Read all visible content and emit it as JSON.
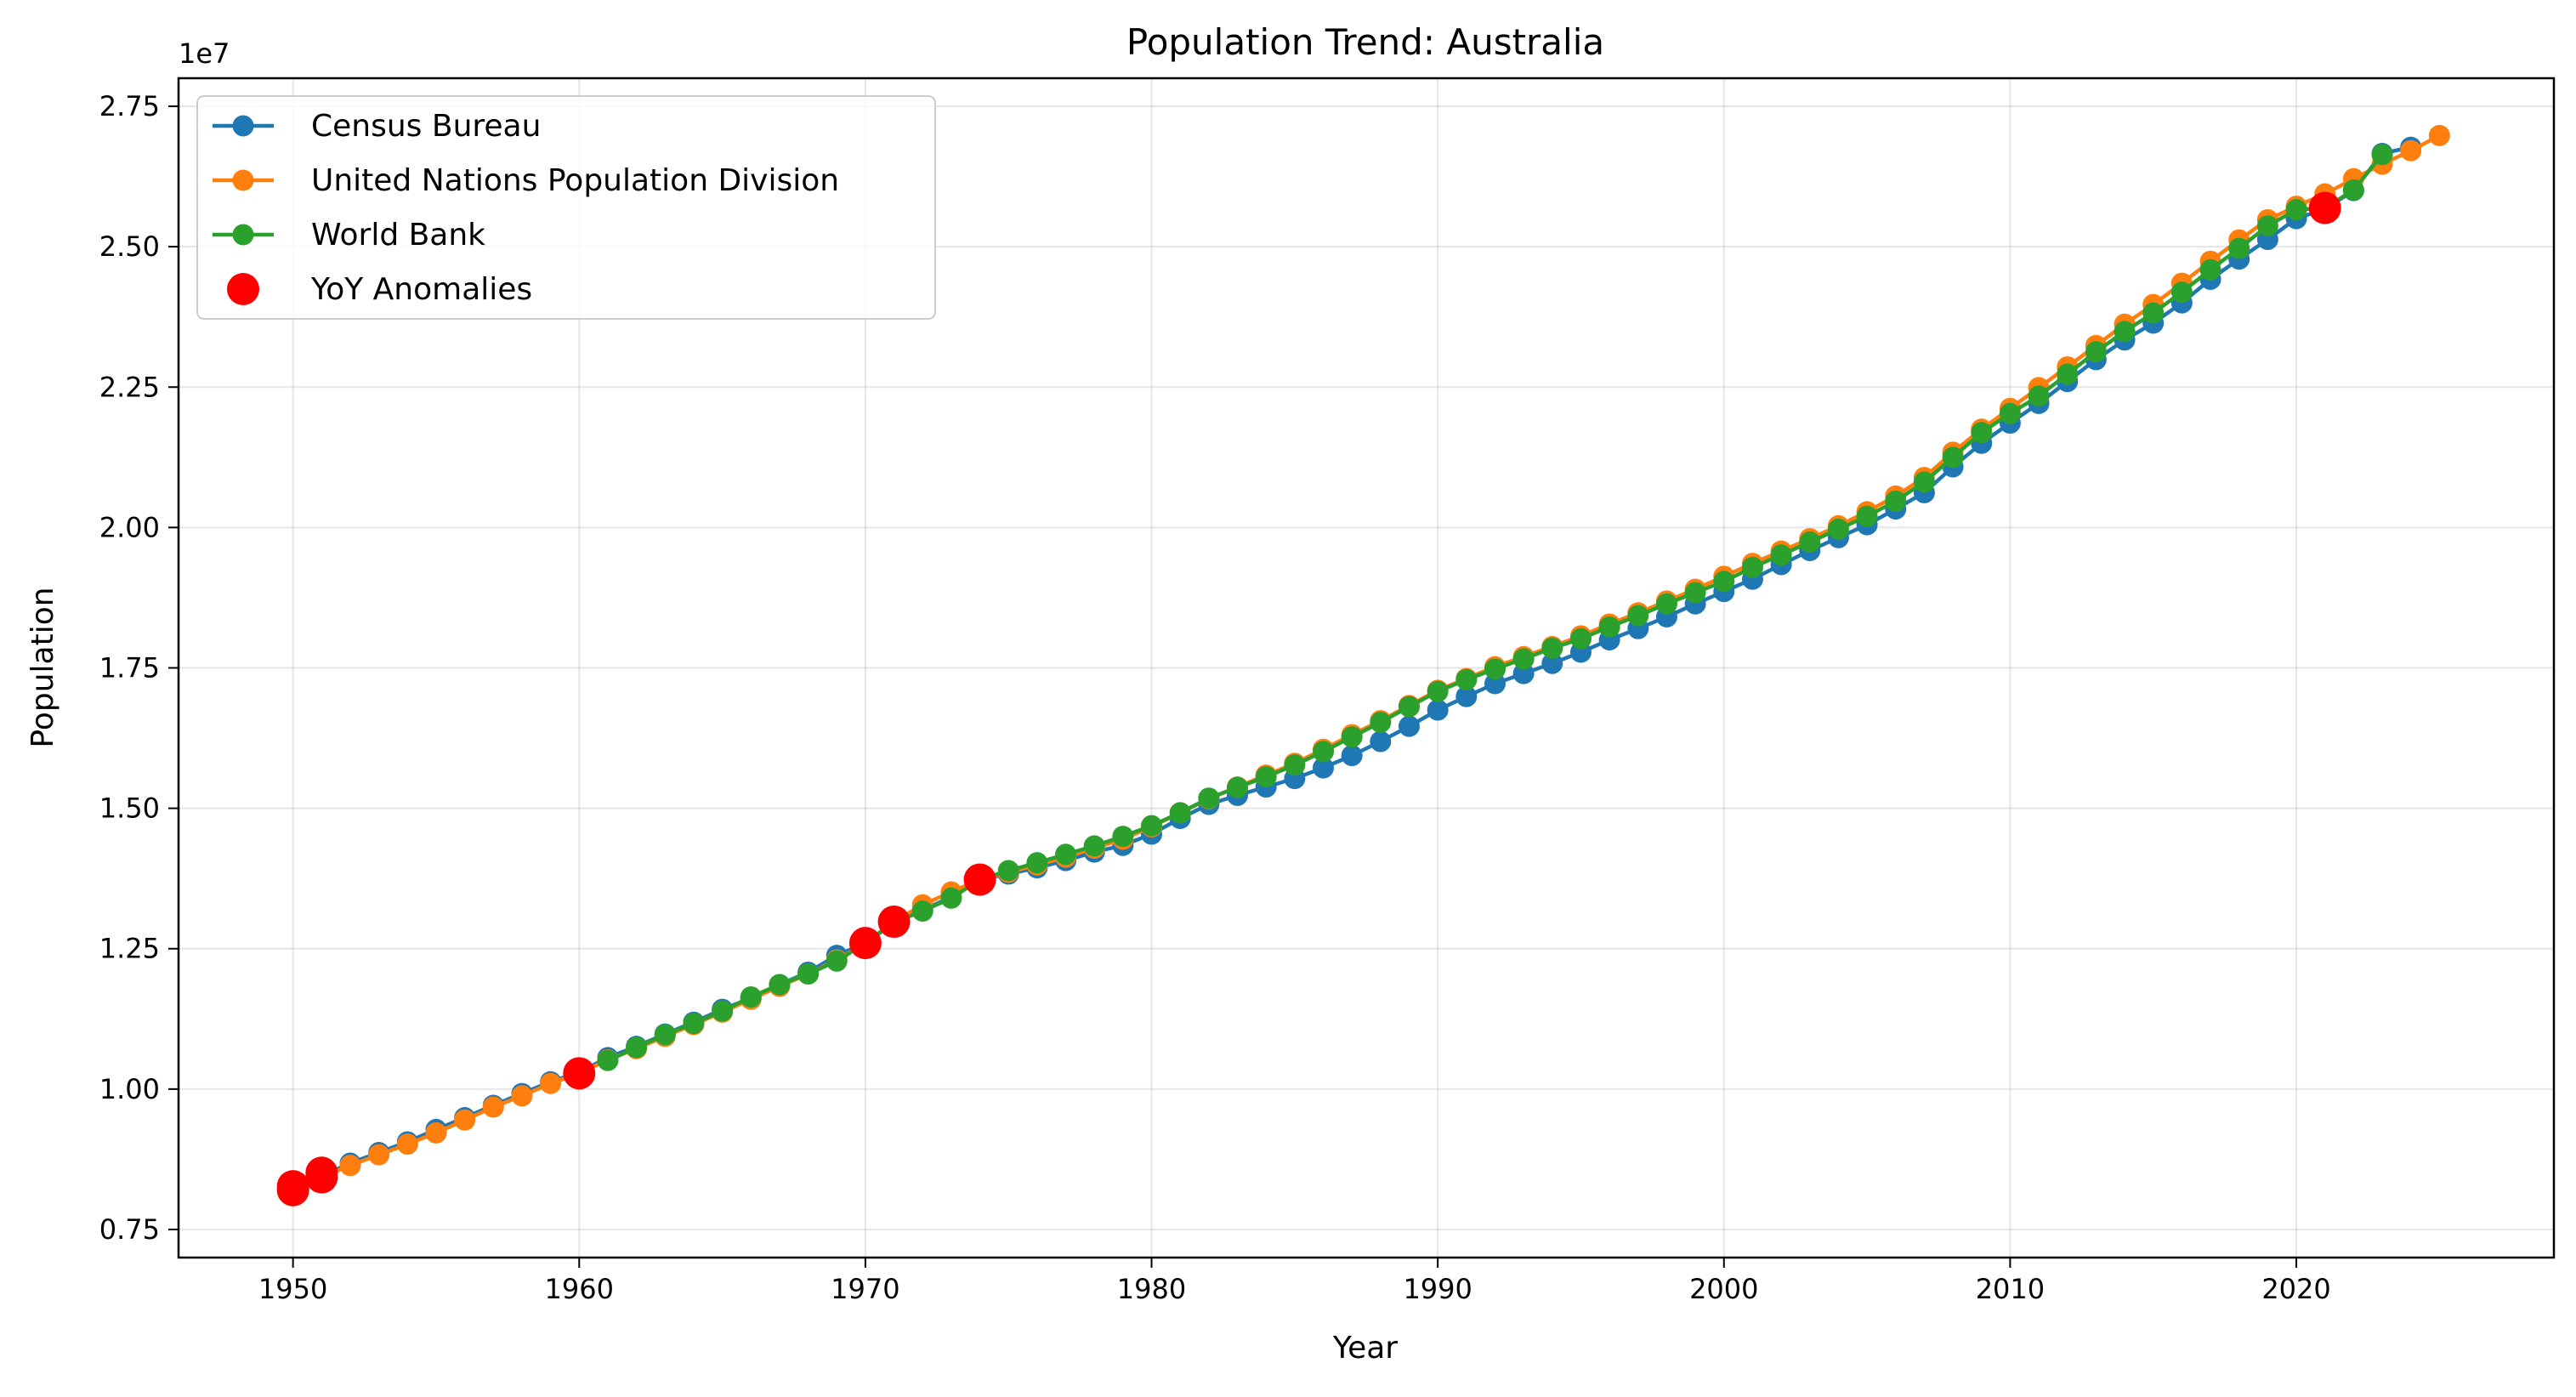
{
  "chart_data": {
    "type": "line",
    "title": "Population Trend: Australia",
    "xlabel": "Year",
    "ylabel": "Population",
    "y_offset_text": "1e7",
    "xlim": [
      1946,
      2029
    ],
    "ylim": [
      7000000,
      28000000
    ],
    "x_ticks": [
      1950,
      1960,
      1970,
      1980,
      1990,
      2000,
      2010,
      2020
    ],
    "x_tick_labels": [
      "1950",
      "1960",
      "1970",
      "1980",
      "1990",
      "2000",
      "2010",
      "2020"
    ],
    "y_ticks": [
      7500000,
      10000000,
      12500000,
      15000000,
      17500000,
      20000000,
      22500000,
      25000000,
      27500000
    ],
    "y_tick_labels": [
      "0.75",
      "1.00",
      "1.25",
      "1.50",
      "1.75",
      "2.00",
      "2.25",
      "2.50",
      "2.75"
    ],
    "grid": true,
    "legend_position": "top-left",
    "series": [
      {
        "name": "Census Bureau",
        "color": "#1f77b4",
        "x": [
          1950,
          1951,
          1952,
          1953,
          1954,
          1955,
          1956,
          1957,
          1958,
          1959,
          1960,
          1961,
          1962,
          1963,
          1964,
          1965,
          1966,
          1967,
          1968,
          1969,
          1970,
          1971,
          1972,
          1973,
          1974,
          1975,
          1976,
          1977,
          1978,
          1979,
          1980,
          1981,
          1982,
          1983,
          1984,
          1985,
          1986,
          1987,
          1988,
          1989,
          1990,
          1991,
          1992,
          1993,
          1994,
          1995,
          1996,
          1997,
          1998,
          1999,
          2000,
          2001,
          2002,
          2003,
          2004,
          2005,
          2006,
          2007,
          2008,
          2009,
          2010,
          2011,
          2012,
          2013,
          2014,
          2015,
          2016,
          2017,
          2018,
          2019,
          2020,
          2021,
          2022,
          2023,
          2024
        ],
        "values": [
          8200000,
          8450000,
          8680000,
          8870000,
          9060000,
          9280000,
          9490000,
          9710000,
          9920000,
          10130000,
          10300000,
          10560000,
          10760000,
          10980000,
          11190000,
          11420000,
          11620000,
          11860000,
          12080000,
          12380000,
          12600000,
          12960000,
          13190000,
          13420000,
          13730000,
          13830000,
          13940000,
          14070000,
          14220000,
          14340000,
          14540000,
          14820000,
          15070000,
          15230000,
          15380000,
          15530000,
          15720000,
          15940000,
          16190000,
          16460000,
          16750000,
          16990000,
          17220000,
          17400000,
          17580000,
          17780000,
          18000000,
          18200000,
          18410000,
          18640000,
          18860000,
          19080000,
          19340000,
          19590000,
          19820000,
          20050000,
          20330000,
          20620000,
          21080000,
          21500000,
          21860000,
          22210000,
          22600000,
          22990000,
          23340000,
          23640000,
          24000000,
          24420000,
          24780000,
          25130000,
          25500000,
          25670000,
          26000000,
          26660000,
          26770000
        ]
      },
      {
        "name": "United Nations Population Division",
        "color": "#ff7f0e",
        "x": [
          1950,
          1951,
          1952,
          1953,
          1954,
          1955,
          1956,
          1957,
          1958,
          1959,
          1960,
          1961,
          1962,
          1963,
          1964,
          1965,
          1966,
          1967,
          1968,
          1969,
          1970,
          1971,
          1972,
          1973,
          1974,
          1975,
          1976,
          1977,
          1978,
          1979,
          1980,
          1981,
          1982,
          1983,
          1984,
          1985,
          1986,
          1987,
          1988,
          1989,
          1990,
          1991,
          1992,
          1993,
          1994,
          1995,
          1996,
          1997,
          1998,
          1999,
          2000,
          2001,
          2002,
          2003,
          2004,
          2005,
          2006,
          2007,
          2008,
          2009,
          2010,
          2011,
          2012,
          2013,
          2014,
          2015,
          2016,
          2017,
          2018,
          2019,
          2020,
          2021,
          2022,
          2023,
          2024,
          2025
        ],
        "values": [
          8200000,
          8430000,
          8640000,
          8830000,
          9020000,
          9220000,
          9450000,
          9680000,
          9880000,
          10100000,
          10280000,
          10520000,
          10720000,
          10940000,
          11150000,
          11370000,
          11600000,
          11830000,
          12050000,
          12300000,
          12600000,
          12980000,
          13280000,
          13510000,
          13730000,
          13860000,
          13990000,
          14130000,
          14290000,
          14450000,
          14670000,
          14920000,
          15170000,
          15380000,
          15590000,
          15800000,
          16050000,
          16310000,
          16560000,
          16830000,
          17100000,
          17310000,
          17520000,
          17700000,
          17880000,
          18070000,
          18280000,
          18480000,
          18690000,
          18900000,
          19130000,
          19360000,
          19580000,
          19800000,
          20030000,
          20280000,
          20560000,
          20890000,
          21340000,
          21750000,
          22120000,
          22490000,
          22860000,
          23240000,
          23620000,
          23970000,
          24350000,
          24740000,
          25120000,
          25480000,
          25720000,
          25940000,
          26210000,
          26470000,
          26710000,
          26980000
        ]
      },
      {
        "name": "World Bank",
        "color": "#2ca02c",
        "x": [
          1961,
          1962,
          1963,
          1964,
          1965,
          1966,
          1967,
          1968,
          1969,
          1970,
          1971,
          1972,
          1973,
          1974,
          1975,
          1976,
          1977,
          1978,
          1979,
          1980,
          1981,
          1982,
          1983,
          1984,
          1985,
          1986,
          1987,
          1988,
          1989,
          1990,
          1991,
          1992,
          1993,
          1994,
          1995,
          1996,
          1997,
          1998,
          1999,
          2000,
          2001,
          2002,
          2003,
          2004,
          2005,
          2006,
          2007,
          2008,
          2009,
          2010,
          2011,
          2012,
          2013,
          2014,
          2015,
          2016,
          2017,
          2018,
          2019,
          2020,
          2021,
          2022,
          2023
        ],
        "values": [
          10510000,
          10740000,
          10970000,
          11170000,
          11390000,
          11640000,
          11860000,
          12050000,
          12280000,
          12600000,
          12970000,
          13170000,
          13400000,
          13730000,
          13890000,
          14030000,
          14180000,
          14330000,
          14500000,
          14690000,
          14920000,
          15180000,
          15370000,
          15560000,
          15770000,
          16010000,
          16270000,
          16530000,
          16810000,
          17080000,
          17290000,
          17480000,
          17660000,
          17850000,
          18020000,
          18230000,
          18430000,
          18640000,
          18840000,
          19040000,
          19290000,
          19510000,
          19740000,
          19970000,
          20200000,
          20470000,
          20810000,
          21250000,
          21690000,
          22030000,
          22340000,
          22730000,
          23130000,
          23490000,
          23820000,
          24190000,
          24590000,
          24970000,
          25370000,
          25660000,
          25690000,
          26010000,
          26640000
        ]
      },
      {
        "name": "YoY Anomalies",
        "color": "#ff0000",
        "kind": "scatter",
        "x": [
          1950,
          1950,
          1951,
          1951,
          1960,
          1970,
          1971,
          1974,
          2021
        ],
        "values": [
          8200000,
          8270000,
          8430000,
          8510000,
          10280000,
          12600000,
          12980000,
          13730000,
          25690000
        ]
      }
    ]
  }
}
